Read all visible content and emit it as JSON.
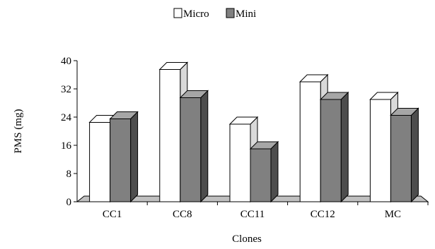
{
  "chart_data": {
    "type": "bar",
    "title": "",
    "xlabel": "Clones",
    "ylabel": "PMS (mg)",
    "categories": [
      "CC1",
      "CC8",
      "CC11",
      "CC12",
      "MC"
    ],
    "series": [
      {
        "name": "Micro",
        "values": [
          22.5,
          37.5,
          22,
          34,
          29
        ],
        "color": "#ffffff"
      },
      {
        "name": "Mini",
        "values": [
          23.5,
          29.5,
          15,
          29,
          24.5
        ],
        "color": "#808080"
      }
    ],
    "ylim": [
      0,
      40
    ],
    "yticks": [
      0,
      8,
      16,
      24,
      32,
      40
    ],
    "grid": false,
    "legend": "top-center",
    "style": "3d-bar"
  }
}
